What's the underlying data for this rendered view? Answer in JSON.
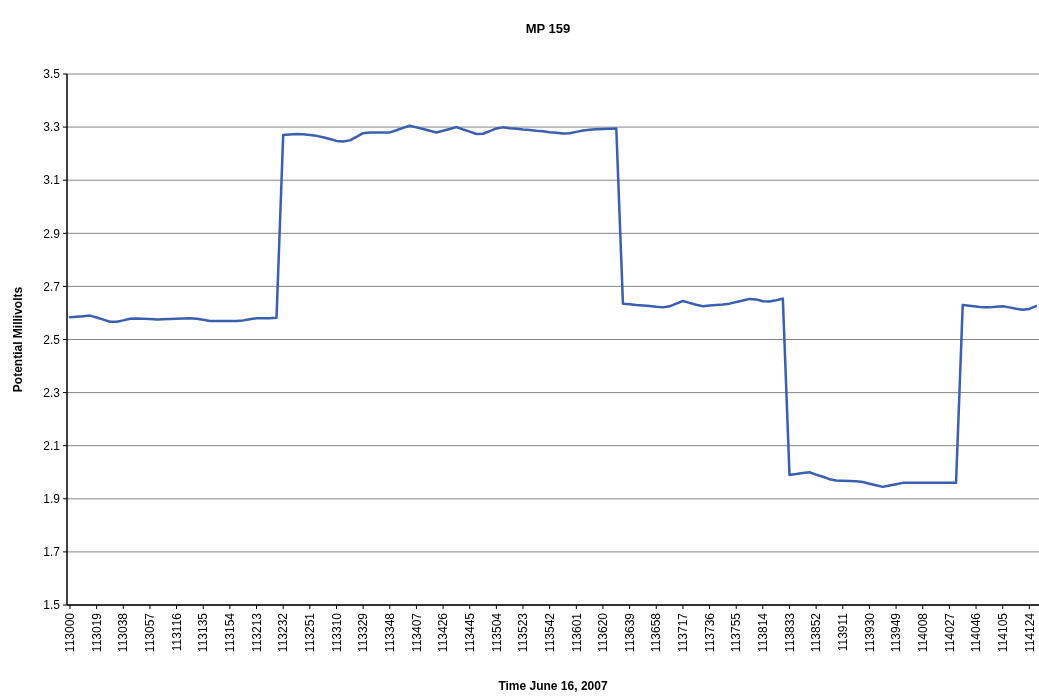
{
  "chart_data": {
    "type": "line",
    "title": "MP 159",
    "xlabel": "Time June 16, 2007",
    "ylabel": "Potential Millivolts",
    "categories": [
      "113000",
      null,
      null,
      null,
      "113019",
      null,
      null,
      null,
      "113038",
      null,
      null,
      null,
      "113057",
      null,
      null,
      null,
      "113116",
      null,
      null,
      null,
      "113135",
      null,
      null,
      null,
      "113154",
      null,
      null,
      null,
      "113213",
      null,
      null,
      null,
      "113232",
      null,
      null,
      null,
      "113251",
      null,
      null,
      null,
      "113310",
      null,
      null,
      null,
      "113329",
      null,
      null,
      null,
      "113348",
      null,
      null,
      null,
      "113407",
      null,
      null,
      null,
      "113426",
      null,
      null,
      null,
      "113445",
      null,
      null,
      null,
      "113504",
      null,
      null,
      null,
      "113523",
      null,
      null,
      null,
      "113542",
      null,
      null,
      null,
      "113601",
      null,
      null,
      null,
      "113620",
      null,
      null,
      null,
      "113639",
      null,
      null,
      null,
      "113658",
      null,
      null,
      null,
      "113717",
      null,
      null,
      null,
      "113736",
      null,
      null,
      null,
      "113755",
      null,
      null,
      null,
      "113814",
      null,
      null,
      null,
      "113833",
      null,
      null,
      null,
      "113852",
      null,
      null,
      null,
      "113911",
      null,
      null,
      null,
      "113930",
      null,
      null,
      null,
      "113949",
      null,
      null,
      null,
      "114008",
      null,
      null,
      null,
      "114027",
      null,
      null,
      null,
      "114046",
      null,
      null,
      null,
      "114105",
      null,
      null,
      null,
      "114124",
      null
    ],
    "series": [
      {
        "color": "#3a5fb0",
        "values": [
          2.584,
          2.586,
          2.588,
          2.59,
          2.583,
          2.575,
          2.567,
          2.567,
          2.572,
          2.578,
          2.579,
          2.578,
          2.577,
          2.575,
          2.576,
          2.577,
          2.578,
          2.579,
          2.58,
          2.578,
          2.574,
          2.57,
          2.57,
          2.57,
          2.57,
          2.57,
          2.572,
          2.576,
          2.58,
          2.58,
          2.58,
          2.582,
          3.27,
          3.272,
          3.274,
          3.273,
          3.27,
          3.267,
          3.262,
          3.255,
          3.248,
          3.246,
          3.25,
          3.263,
          3.277,
          3.28,
          3.28,
          3.28,
          3.28,
          3.288,
          3.297,
          3.305,
          3.299,
          3.293,
          3.286,
          3.28,
          3.286,
          3.293,
          3.3,
          3.291,
          3.283,
          3.274,
          3.275,
          3.285,
          3.295,
          3.299,
          3.296,
          3.294,
          3.291,
          3.289,
          3.286,
          3.284,
          3.281,
          3.279,
          3.276,
          3.277,
          3.282,
          3.287,
          3.29,
          3.292,
          3.293,
          3.294,
          3.295,
          2.635,
          2.633,
          2.63,
          2.628,
          2.626,
          2.623,
          2.621,
          2.625,
          2.635,
          2.645,
          2.638,
          2.631,
          2.625,
          2.628,
          2.63,
          2.632,
          2.635,
          2.641,
          2.647,
          2.653,
          2.651,
          2.644,
          2.643,
          2.648,
          2.654,
          1.99,
          1.993,
          1.997,
          2.0,
          1.991,
          1.983,
          1.974,
          1.969,
          1.968,
          1.967,
          1.966,
          1.963,
          1.957,
          1.951,
          1.945,
          1.95,
          1.955,
          1.96,
          1.96,
          1.96,
          1.96,
          1.96,
          1.96,
          1.96,
          1.96,
          1.96,
          2.63,
          2.627,
          2.624,
          2.621,
          2.621,
          2.623,
          2.625,
          2.621,
          2.616,
          2.612,
          2.615,
          2.626
        ]
      }
    ],
    "ylim": [
      1.5,
      3.5
    ],
    "yticks": [
      1.5,
      1.7,
      1.9,
      2.1,
      2.3,
      2.5,
      2.7,
      2.9,
      3.1,
      3.3,
      3.5
    ],
    "grid": "y",
    "marker": "none",
    "line_style": "solid"
  }
}
